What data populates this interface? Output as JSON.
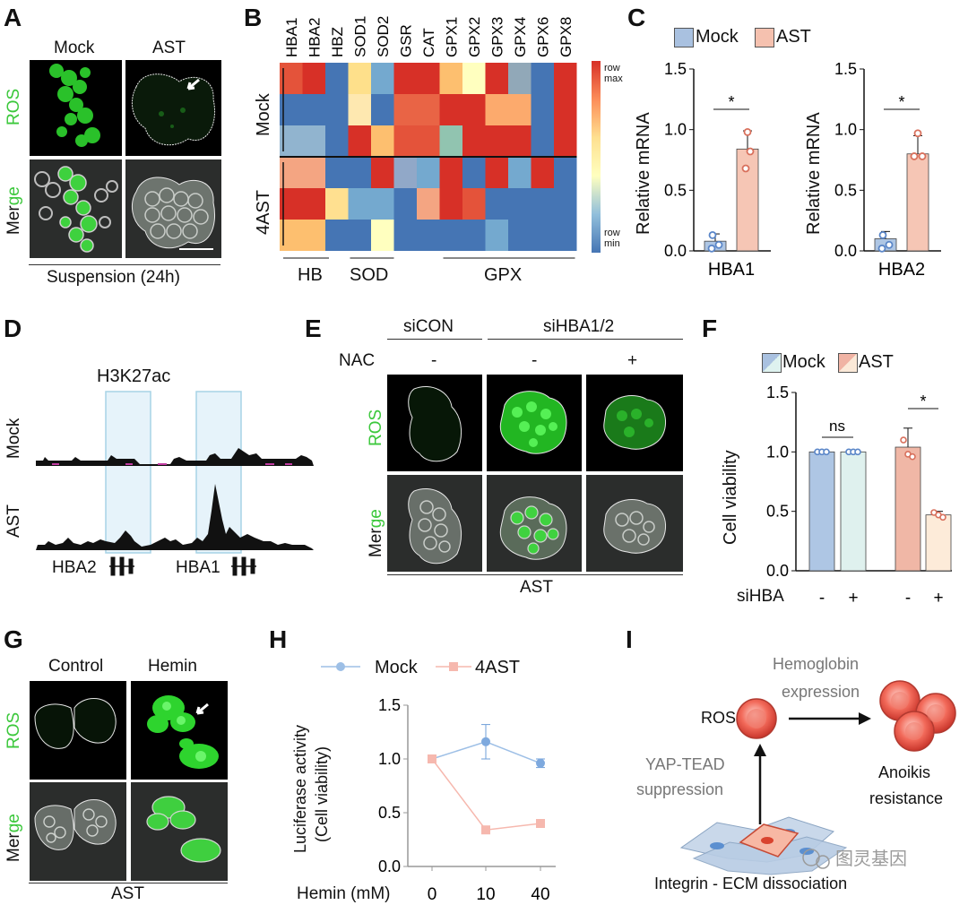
{
  "panels": {
    "A": {
      "letter": "A",
      "col_mock": "Mock",
      "col_ast": "AST",
      "row_ros": "ROS",
      "row_merge_a": "Mer",
      "row_merge_b": "ge",
      "footer": "Suspension (24h)"
    },
    "B": {
      "letter": "B",
      "columns": [
        "HBA1",
        "HBA2",
        "HBZ",
        "SOD1",
        "SOD2",
        "GSR",
        "CAT",
        "GPX1",
        "GPX2",
        "GPX3",
        "GPX4",
        "GPX6",
        "GPX8"
      ],
      "row_mock": "Mock",
      "row_ast": "4AST",
      "legend_max": "row max",
      "legend_min": "row min",
      "groups": [
        "HB",
        "SOD",
        "GPX"
      ],
      "heatmap": [
        [
          "#e4533a",
          "#d73027",
          "#4575b4",
          "#fee08b",
          "#74a9cf",
          "#d73027",
          "#d73027",
          "#fdbf6f",
          "#ffffbf",
          "#d73027",
          "#91a8b8",
          "#4575b4",
          "#d73027"
        ],
        [
          "#4575b4",
          "#4575b4",
          "#4575b4",
          "#fee8b0",
          "#4575b4",
          "#e96445",
          "#e96445",
          "#d73027",
          "#d73027",
          "#fcaa6d",
          "#fcaa6d",
          "#4575b4",
          "#d73027"
        ],
        [
          "#91b4cf",
          "#91b4cf",
          "#4575b4",
          "#d73027",
          "#fdbf6f",
          "#e4533a",
          "#e4533a",
          "#91c4b0",
          "#d73027",
          "#d73027",
          "#d73027",
          "#4575b4",
          "#d73027"
        ],
        [
          "#f4a582",
          "#f4a582",
          "#4575b4",
          "#4575b4",
          "#d73027",
          "#91a8c8",
          "#74a9cf",
          "#d73027",
          "#4575b4",
          "#d73027",
          "#74a9cf",
          "#d73027",
          "#4575b4"
        ],
        [
          "#d73027",
          "#d73027",
          "#ffe090",
          "#74a9cf",
          "#74a9cf",
          "#4575b4",
          "#f4a582",
          "#d73027",
          "#e4533a",
          "#4575b4",
          "#4575b4",
          "#4575b4",
          "#4575b4"
        ],
        [
          "#fdbf6f",
          "#fdbf6f",
          "#4575b4",
          "#4575b4",
          "#ffffbf",
          "#4575b4",
          "#4575b4",
          "#4575b4",
          "#4575b4",
          "#74a9cf",
          "#4575b4",
          "#4575b4",
          "#4575b4"
        ]
      ]
    },
    "C": {
      "letter": "C",
      "legend_mock": "Mock",
      "legend_ast": "AST",
      "ylabel": "Relative mRNA",
      "yticks": [
        "0.0",
        "0.5",
        "1.0",
        "1.5"
      ],
      "charts": [
        {
          "gene": "HBA1",
          "mock": 0.08,
          "ast": 0.84,
          "sig": "*"
        },
        {
          "gene": "HBA2",
          "mock": 0.1,
          "ast": 0.8,
          "sig": "*"
        }
      ]
    },
    "D": {
      "letter": "D",
      "mark": "H3K27ac",
      "row_mock": "Mock",
      "row_ast": "AST",
      "gene1": "HBA2",
      "gene2": "HBA1"
    },
    "E": {
      "letter": "E",
      "group1": "siCON",
      "group2": "siHBA1/2",
      "nac_label": "NAC",
      "nac_values": [
        "-",
        "-",
        "+"
      ],
      "row_ros": "ROS",
      "row_merge_a": "Mer",
      "row_merge_b": "ge",
      "footer": "AST"
    },
    "F": {
      "letter": "F",
      "legend_mock": "Mock",
      "legend_ast": "AST",
      "ylabel": "Cell viability",
      "yticks": [
        "0.0",
        "0.5",
        "1.0",
        "1.5"
      ],
      "x_label": "siHBA",
      "x_signs": [
        "-",
        "+",
        "-",
        "+"
      ],
      "sig_left": "ns",
      "sig_right": "*",
      "values": [
        1.0,
        1.0,
        1.04,
        0.47
      ]
    },
    "G": {
      "letter": "G",
      "col_control": "Control",
      "col_hemin": "Hemin",
      "row_ros": "ROS",
      "row_merge_a": "Mer",
      "row_merge_b": "ge",
      "footer": "AST"
    },
    "H": {
      "letter": "H",
      "legend_mock": "Mock",
      "legend_ast": "4AST",
      "ylabel_1": "Luciferase activity",
      "ylabel_2": "(Cell viability)",
      "yticks": [
        "0.0",
        "0.5",
        "1.0",
        "1.5"
      ],
      "x_title": "Hemin (mM)",
      "xticks": [
        "0",
        "10",
        "40"
      ]
    },
    "I": {
      "letter": "I",
      "ros": "ROS",
      "hemo_1": "Hemoglobin",
      "hemo_2": "expression",
      "yap_1": "YAP-TEAD",
      "yap_2": "suppression",
      "anoikis_1": "Anoikis",
      "anoikis_2": "resistance",
      "integrin": "Integrin - ECM dissociation",
      "watermark": "图灵基因"
    }
  },
  "chart_data": [
    {
      "type": "bar",
      "title": "",
      "categories": [
        "Mock",
        "AST"
      ],
      "series": [
        {
          "name": "HBA1",
          "values": [
            0.08,
            0.84
          ]
        }
      ],
      "ylabel": "Relative mRNA",
      "ylim": [
        0,
        1.5
      ],
      "annotations": [
        "*"
      ]
    },
    {
      "type": "bar",
      "title": "",
      "categories": [
        "Mock",
        "AST"
      ],
      "series": [
        {
          "name": "HBA2",
          "values": [
            0.1,
            0.8
          ]
        }
      ],
      "ylabel": "Relative mRNA",
      "ylim": [
        0,
        1.5
      ],
      "annotations": [
        "*"
      ]
    },
    {
      "type": "bar",
      "title": "",
      "categories": [
        "Mock -",
        "Mock +",
        "AST -",
        "AST +"
      ],
      "series": [
        {
          "name": "Cell viability",
          "values": [
            1.0,
            1.0,
            1.04,
            0.47
          ]
        }
      ],
      "xlabel": "siHBA",
      "ylabel": "Cell viability",
      "ylim": [
        0,
        1.5
      ],
      "annotations": [
        "ns",
        "*"
      ]
    },
    {
      "type": "line",
      "title": "",
      "x": [
        0,
        10,
        40
      ],
      "series": [
        {
          "name": "Mock",
          "values": [
            1.0,
            1.16,
            0.96
          ]
        },
        {
          "name": "4AST",
          "values": [
            1.0,
            0.34,
            0.4
          ]
        }
      ],
      "xlabel": "Hemin (mM)",
      "ylabel": "Luciferase activity (Cell viability)",
      "ylim": [
        0,
        1.5
      ]
    }
  ]
}
